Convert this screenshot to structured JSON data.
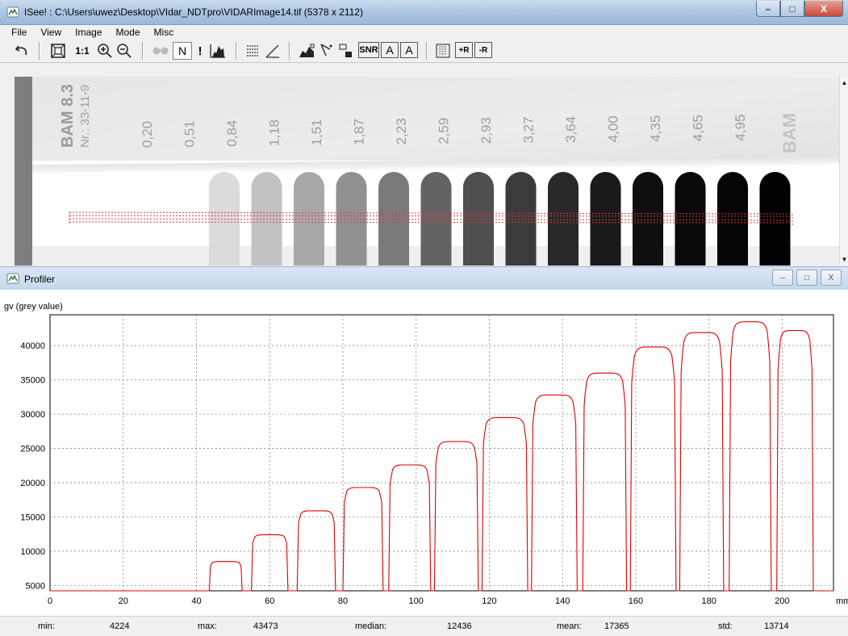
{
  "window": {
    "title": "ISee! : C:\\Users\\uwez\\Desktop\\VIdar_NDTpro\\VIDARImage14.tif (5378 x 2112)",
    "buttons": {
      "minimize": "–",
      "maximize": "□",
      "close": "X"
    }
  },
  "menu": [
    "File",
    "View",
    "Image",
    "Mode",
    "Misc"
  ],
  "toolbar": {
    "undo": "undo-icon",
    "fit": "fit-window-icon",
    "one_to_one": "1:1",
    "zoom_in": "zoom-in-icon",
    "zoom_out": "zoom-out-icon",
    "glasses": "glasses-icon",
    "n_label": "N",
    "exclam": "!",
    "histogram": "histogram-icon",
    "lines_numbers": "lines-icon",
    "angle": "angle-icon",
    "profile_img": "image-profile-icon",
    "cursor": "cursor-icon",
    "region": "region-icon",
    "snr": "SNR",
    "a1": "A",
    "a2": "A",
    "grid": "grid-icon",
    "plus_r": "+R",
    "minus_r": "-R"
  },
  "image_view": {
    "strip_label": "BAM  8.3",
    "strip_nr": "Nr.: 33-11-9",
    "strip_logo": "BAM",
    "thickness_labels": [
      "0,20",
      "0,51",
      "0,84",
      "1,18",
      "1,51",
      "1,87",
      "2,23",
      "2,59",
      "2,93",
      "3,27",
      "3,64",
      "4,00",
      "4,35",
      "4,65",
      "4,95"
    ],
    "step_grey_levels": [
      0.86,
      0.76,
      0.66,
      0.57,
      0.48,
      0.39,
      0.31,
      0.23,
      0.16,
      0.1,
      0.06,
      0.03,
      0.015,
      0.005
    ],
    "profile_band_color": "#e03a3a"
  },
  "profiler": {
    "title": "Profiler",
    "buttons": {
      "minimize": "–",
      "maximize": "□",
      "close": "X"
    }
  },
  "chart_data": {
    "type": "line",
    "ylabel": "gv (grey value)",
    "xunit": "mm",
    "xlim": [
      0,
      214
    ],
    "ylim": [
      4224,
      44500
    ],
    "x_ticks": [
      0,
      20,
      40,
      60,
      80,
      100,
      120,
      140,
      160,
      180,
      200
    ],
    "y_ticks": [
      5000,
      10000,
      15000,
      20000,
      25000,
      30000,
      35000,
      40000
    ],
    "grid": true,
    "line_color": "#e00000",
    "baseline": 4224,
    "series": [
      {
        "values": [
          {
            "start": 43.5,
            "end": 52.5,
            "peak": 8500
          },
          {
            "start": 55.0,
            "end": 65.0,
            "peak": 12400
          },
          {
            "start": 67.5,
            "end": 78.0,
            "peak": 15900
          },
          {
            "start": 80.0,
            "end": 91.0,
            "peak": 19300
          },
          {
            "start": 92.5,
            "end": 104.0,
            "peak": 22600
          },
          {
            "start": 105.0,
            "end": 117.0,
            "peak": 26000
          },
          {
            "start": 118.0,
            "end": 130.5,
            "peak": 29500
          },
          {
            "start": 131.5,
            "end": 144.0,
            "peak": 32800
          },
          {
            "start": 145.5,
            "end": 157.5,
            "peak": 36000
          },
          {
            "start": 158.5,
            "end": 171.0,
            "peak": 39800
          },
          {
            "start": 172.0,
            "end": 184.0,
            "peak": 41900
          },
          {
            "start": 185.5,
            "end": 197.0,
            "peak": 43473
          },
          {
            "start": 198.5,
            "end": 208.5,
            "peak": 42200
          }
        ]
      }
    ]
  },
  "stats": {
    "min_label": "min:",
    "min": "4224",
    "max_label": "max:",
    "max": "43473",
    "median_label": "median:",
    "median": "12436",
    "mean_label": "mean:",
    "mean": "17365",
    "std_label": "std:",
    "std": "13714"
  }
}
